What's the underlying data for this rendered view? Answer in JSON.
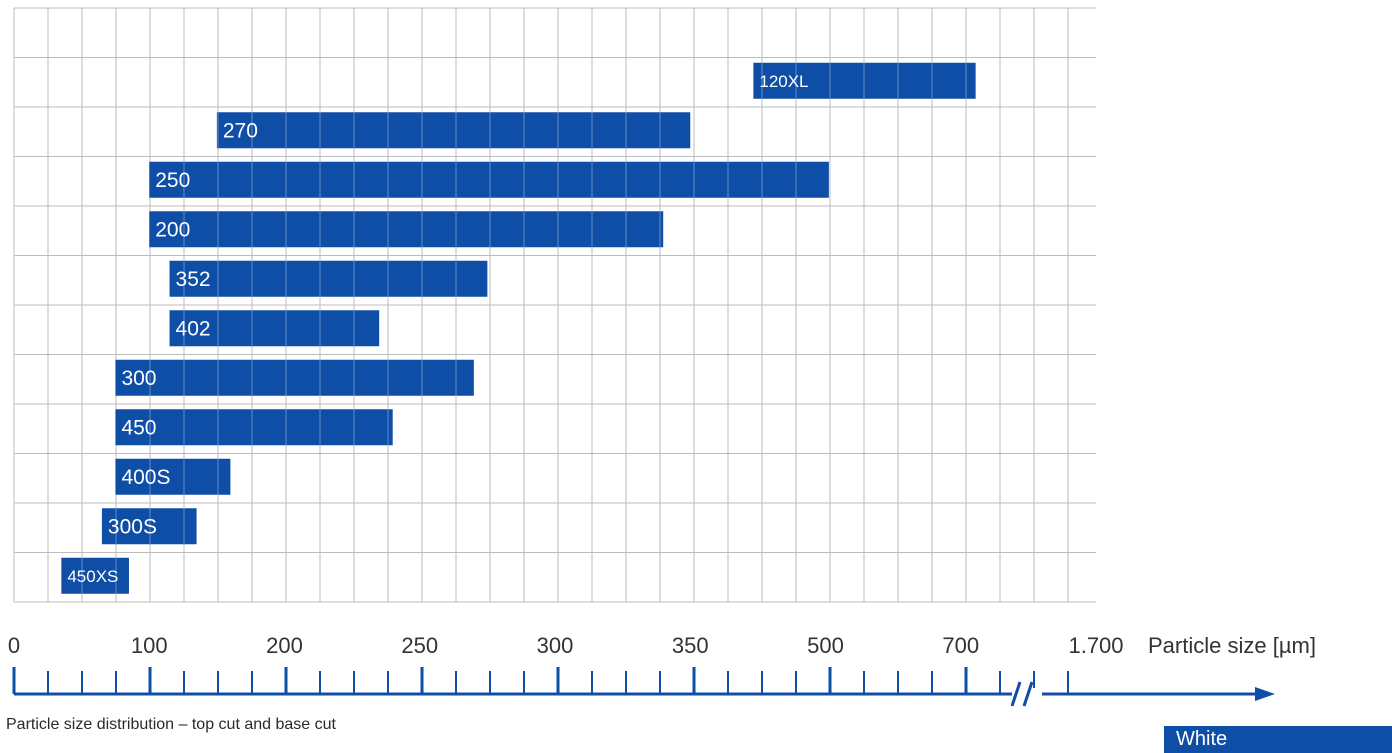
{
  "chart_data": {
    "type": "bar",
    "orientation": "horizontal-range",
    "title": "",
    "xlabel": "Particle size [µm]",
    "x_ticks": [
      "0",
      "100",
      "200",
      "250",
      "300",
      "350",
      "500",
      "700",
      "1.700"
    ],
    "axis_break_after": "700",
    "grid": true,
    "bar_color": "#0f4ea6",
    "series": [
      {
        "label": "120XL",
        "start": 420,
        "end": 810
      },
      {
        "label": "270",
        "start": 150,
        "end": 350
      },
      {
        "label": "250",
        "start": 100,
        "end": 505
      },
      {
        "label": "200",
        "start": 100,
        "end": 340
      },
      {
        "label": "352",
        "start": 115,
        "end": 275
      },
      {
        "label": "402",
        "start": 115,
        "end": 235
      },
      {
        "label": "300",
        "start": 75,
        "end": 270
      },
      {
        "label": "450",
        "start": 75,
        "end": 240
      },
      {
        "label": "400S",
        "start": 75,
        "end": 160
      },
      {
        "label": "300S",
        "start": 65,
        "end": 135
      },
      {
        "label": "450XS",
        "start": 35,
        "end": 85
      }
    ]
  },
  "caption": "Particle size distribution – top cut and base cut",
  "badge": "White"
}
